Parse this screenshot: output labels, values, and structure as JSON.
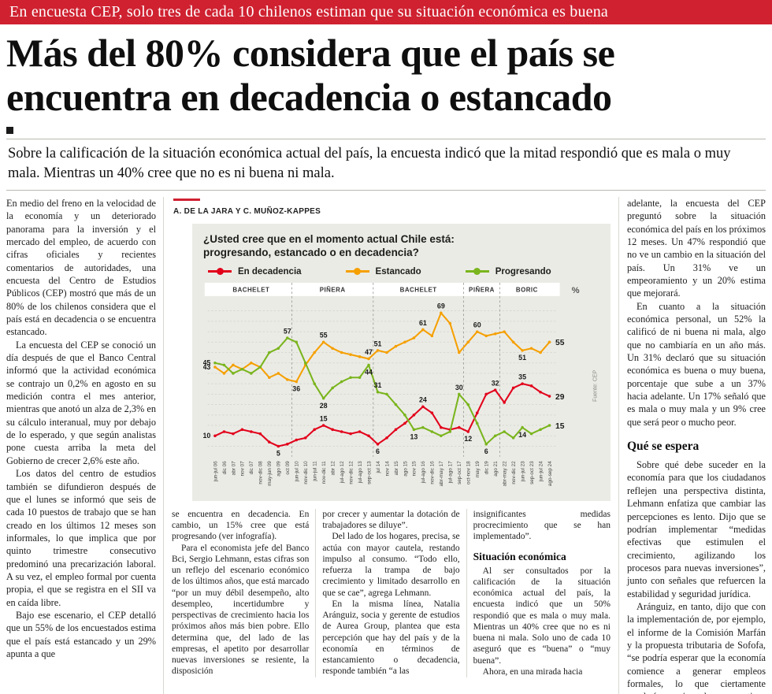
{
  "kicker": "En encuesta CEP, solo tres de cada 10 chilenos estiman que su situación económica es buena",
  "headline": "Más del 80% considera que el país se encuentra en decadencia o estancado",
  "deck": "Sobre la calificación de la situación económica actual del país, la encuesta indicó que la mitad respondió que es mala o muy mala. Mientras un 40% cree que no es ni buena ni mala.",
  "byline": "A. DE LA JARA Y C. MUÑOZ-KAPPES",
  "article": {
    "left": [
      "En medio del freno en la velocidad de la economía y un deteriorado panorama para la inversión y el mercado del empleo, de acuerdo con cifras oficiales y recientes comentarios de autoridades, una encuesta del Centro de Estudios Públicos (CEP) mostró que más de un 80% de los chilenos considera que el país está en decadencia o se encuentra estancado.",
      "La encuesta del CEP se conoció un día después de que el Banco Central informó que la actividad económica se contrajo un 0,2% en agosto en su medición contra el mes anterior, mientras que anotó un alza de 2,3% en su cálculo interanual, muy por debajo de lo esperado, y que según analistas pone cuesta arriba la meta del Gobierno de crecer 2,6% este año.",
      "Los datos del centro de estudios también se difundieron después de que el lunes se informó que seis de cada 10 puestos de trabajo que se han creado en los últimos 12 meses son informales, lo que implica que por quinto trimestre consecutivo predominó una precarización laboral. A su vez, el empleo formal por cuenta propia, el que se registra en el SII va en caída libre.",
      "Bajo ese escenario, el CEP detalló que un 55% de los encuestados estima que el país está estancado y un 29% apunta a que"
    ],
    "mid1": [
      "se encuentra en decadencia. En cambio, un 15% cree que está progresando (ver infografía).",
      "Para el economista jefe del Banco Bci, Sergio Lehmann, estas cifras son un reflejo del escenario económico de los últimos años, que está marcado “por un muy débil desempeño, alto desempleo, incertidumbre y perspectivas de crecimiento hacia los próximos años más bien pobre. Ello determina que, del lado de las empresas, el apetito por desarrollar nuevas inversiones se resiente, la disposición"
    ],
    "mid2": [
      "por crecer y aumentar la dotación de trabajadores se diluye”.",
      "Del lado de los hogares, precisa, se actúa con mayor cautela, restando impulso al consumo. “Todo ello, refuerza la trampa de bajo crecimiento y limitado desarrollo en que se cae”, agrega Lehmann.",
      "En la misma línea, Natalia Aránguiz, socia y gerente de estudios de Aurea Group, plantea que esta percepción que hay del país y de la economía en términos de estancamiento o decadencia, responde también “a las"
    ],
    "mid3a": [
      "insignificantes medidas procrecimiento que se han implementado”."
    ],
    "mid3_heading": "Situación económica",
    "mid3b": [
      "Al ser consultados por la calificación de la situación económica actual del país, la encuesta indicó que un 50% respondió que es mala o muy mala. Mientras un 40% cree que no es ni buena ni mala. Solo uno de cada 10 aseguró que es “buena” o “muy buena”.",
      "Ahora, en una mirada hacia"
    ],
    "right1": [
      "adelante, la encuesta del CEP preguntó sobre la situación económica del país en los próximos 12 meses. Un 47% respondió que no ve un cambio en la situación del país. Un 31% ve un empeoramiento y un 20% estima que mejorará.",
      "En cuanto a la situación económica personal, un 52% la calificó de ni buena ni mala, algo que no cambiaría en un año más. Un 31% declaró que su situación económica es buena o muy buena, porcentaje que sube a un 37% hacia adelante. Un 17% señaló que es mala o muy mala y un 9% cree que será peor o mucho peor."
    ],
    "right_heading": "Qué se espera",
    "right2": [
      "Sobre qué debe suceder en la economía para que los ciudadanos reflejen una perspectiva distinta, Lehmann enfatiza que cambiar las percepciones es lento. Dijo que se podrían implementar “medidas efectivas que estimulen el crecimiento, agilizando los procesos para nuevas inversiones”, junto con señales que refuercen la estabilidad y seguridad jurídica.",
      "Aránguiz, en tanto, dijo que con la implementación de, por ejemplo, el informe de la Comisión Marfán y la propuesta tributaria de Sofofa, “se podría esperar que la economía comience a generar empleos formales, lo que ciertamente ayudaría a mejorar las perspectivas a futuro”."
    ]
  },
  "chart_data": {
    "type": "line",
    "title": "¿Usted cree que en el momento actual Chile está: progresando, estancado o en decadencia?",
    "unit": "%",
    "source": "Fuente: CEP",
    "ylim": [
      0,
      75
    ],
    "grid_step": 5,
    "grid": "dashed-horizontal",
    "legend_position": "top",
    "categories": [
      "jun-jul 06",
      "dic 06",
      "abr 07",
      "nov 07",
      "dic 07",
      "nov-dic 08",
      "may-jun 09",
      "ago 09",
      "oct 09",
      "jun-jul 10",
      "nov-dic 10",
      "jun-jul 11",
      "nov-dic 11",
      "abr 12",
      "jul-ago 12",
      "nov-dic 12",
      "jul-ago 13",
      "sep-oct 13",
      "jul 14",
      "nov 14",
      "abr 15",
      "ago 15",
      "nov 15",
      "jul-ago 16",
      "nov-dic 16",
      "abr-may 17",
      "jul-ago 17",
      "sep-oct 17",
      "oct-nov 18",
      "may 19",
      "dic 19",
      "ago 21",
      "abr-may 22",
      "nov-dic 22",
      "jun-jul 23",
      "sep-oct 23",
      "jun-jul 24",
      "ago-sep 24"
    ],
    "president_bands": [
      {
        "label": "BACHELET",
        "from": 0,
        "to": 8
      },
      {
        "label": "PIÑERA",
        "from": 9,
        "to": 17
      },
      {
        "label": "BACHELET",
        "from": 18,
        "to": 27
      },
      {
        "label": "PIÑERA",
        "from": 28,
        "to": 31
      },
      {
        "label": "BORIC",
        "from": 32,
        "to": 37
      }
    ],
    "series": [
      {
        "name": "En decadencia",
        "color": "#e2001a",
        "values": [
          10,
          12,
          11,
          13,
          12,
          11,
          7,
          5,
          6,
          8,
          9,
          13,
          15,
          13,
          12,
          11,
          12,
          10,
          6,
          9,
          13,
          16,
          20,
          24,
          21,
          14,
          13,
          14,
          12,
          21,
          30,
          32,
          26,
          33,
          35,
          34,
          31,
          29
        ],
        "labels": [
          [
            0,
            "left"
          ],
          [
            7,
            "below"
          ],
          [
            12,
            "above"
          ],
          [
            18,
            "below"
          ],
          [
            23,
            "above"
          ],
          [
            28,
            "below"
          ],
          [
            31,
            "above"
          ],
          [
            34,
            "above"
          ],
          [
            37,
            "end"
          ]
        ]
      },
      {
        "name": "Estancado",
        "color": "#f5a000",
        "values": [
          43,
          40,
          44,
          42,
          45,
          43,
          38,
          40,
          37,
          36,
          44,
          50,
          55,
          52,
          50,
          49,
          48,
          47,
          51,
          50,
          53,
          55,
          57,
          61,
          58,
          69,
          64,
          50,
          55,
          60,
          58,
          59,
          60,
          55,
          51,
          52,
          50,
          55
        ],
        "labels": [
          [
            0,
            "left"
          ],
          [
            9,
            "below"
          ],
          [
            12,
            "above"
          ],
          [
            17,
            "above"
          ],
          [
            18,
            "above"
          ],
          [
            23,
            "above"
          ],
          [
            25,
            "above"
          ],
          [
            29,
            "above"
          ],
          [
            34,
            "below"
          ],
          [
            37,
            "end"
          ]
        ]
      },
      {
        "name": "Progresando",
        "color": "#7ab51d",
        "values": [
          45,
          44,
          40,
          42,
          40,
          43,
          50,
          52,
          57,
          55,
          45,
          35,
          28,
          33,
          36,
          38,
          38,
          44,
          31,
          30,
          25,
          20,
          13,
          14,
          12,
          10,
          12,
          30,
          25,
          16,
          6,
          10,
          12,
          9,
          14,
          11,
          13,
          15
        ],
        "labels": [
          [
            0,
            "left"
          ],
          [
            8,
            "above"
          ],
          [
            12,
            "below"
          ],
          [
            17,
            "below"
          ],
          [
            18,
            "above"
          ],
          [
            22,
            "below"
          ],
          [
            27,
            "above"
          ],
          [
            30,
            "below"
          ],
          [
            34,
            "below"
          ],
          [
            37,
            "end"
          ]
        ]
      }
    ]
  }
}
